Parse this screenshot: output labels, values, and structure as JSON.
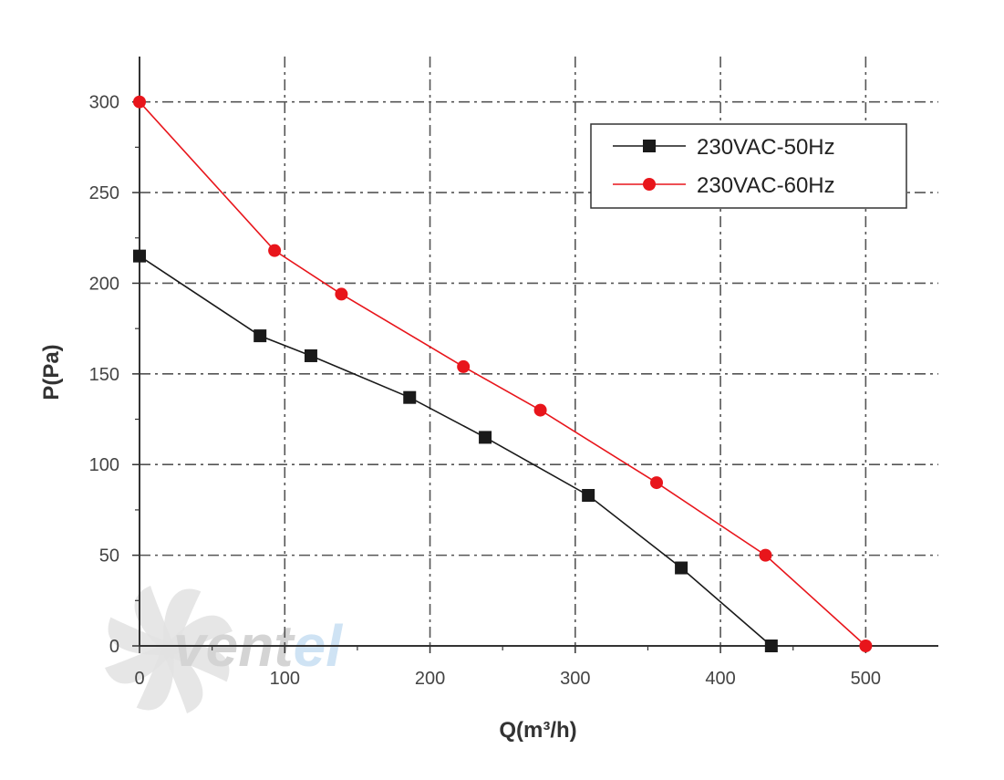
{
  "chart_data": {
    "type": "line",
    "xlabel": "Q(m³/h)",
    "ylabel": "P(Pa)",
    "xlim": [
      0,
      550
    ],
    "ylim": [
      0,
      325
    ],
    "x_ticks": [
      0,
      100,
      200,
      300,
      400,
      500
    ],
    "y_ticks": [
      0,
      50,
      100,
      150,
      200,
      250,
      300
    ],
    "grid": true,
    "grid_style": "dash-dot",
    "legend_position": "top-right",
    "series": [
      {
        "name": "230VAC-50Hz",
        "color": "#1a1a1a",
        "marker": "square",
        "points": [
          [
            0,
            215
          ],
          [
            83,
            171
          ],
          [
            118,
            160
          ],
          [
            186,
            137
          ],
          [
            238,
            115
          ],
          [
            309,
            83
          ],
          [
            373,
            43
          ],
          [
            435,
            0
          ]
        ]
      },
      {
        "name": "230VAC-60Hz",
        "color": "#e8151b",
        "marker": "circle",
        "points": [
          [
            0,
            300
          ],
          [
            93,
            218
          ],
          [
            139,
            194
          ],
          [
            223,
            154
          ],
          [
            276,
            130
          ],
          [
            356,
            90
          ],
          [
            431,
            50
          ],
          [
            500,
            0
          ]
        ]
      }
    ]
  },
  "watermark": {
    "text_gray": "vent",
    "text_blue": "el",
    "gray_color": "#d4d4d4",
    "blue_color": "#cfe3f4",
    "icon": "fan-icon"
  }
}
